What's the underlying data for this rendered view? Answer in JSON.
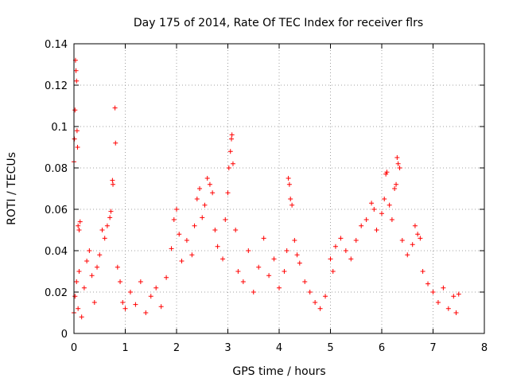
{
  "colors": {
    "series": "#ff0000",
    "grid": "#a0a0a0",
    "frame": "#000000",
    "background": "#ffffff"
  },
  "chart_data": {
    "type": "scatter",
    "title": "Day 175 of 2014, Rate Of TEC Index for receiver flrs",
    "xlabel": "GPS time / hours",
    "ylabel": "ROTI / TECUs",
    "xlim": [
      0,
      8
    ],
    "ylim": [
      0,
      0.14
    ],
    "xticks": [
      0,
      1,
      2,
      3,
      4,
      5,
      6,
      7,
      8
    ],
    "xtick_labels": [
      "0",
      "1",
      "2",
      "3",
      "4",
      "5",
      "6",
      "7",
      "8"
    ],
    "yticks": [
      0,
      0.02,
      0.04,
      0.06,
      0.08,
      0.1,
      0.12,
      0.14
    ],
    "ytick_labels": [
      "0",
      "0.02",
      "0.04",
      "0.06",
      "0.08",
      "0.1",
      "0.12",
      "0.14"
    ],
    "grid": true,
    "marker": "+",
    "series": [
      {
        "name": "ROTI",
        "points": [
          [
            0.0,
            0.083
          ],
          [
            0.01,
            0.094
          ],
          [
            0.02,
            0.108
          ],
          [
            0.03,
            0.132
          ],
          [
            0.04,
            0.127
          ],
          [
            0.05,
            0.122
          ],
          [
            0.06,
            0.098
          ],
          [
            0.07,
            0.09
          ],
          [
            0.08,
            0.052
          ],
          [
            0.1,
            0.05
          ],
          [
            0.12,
            0.054
          ],
          [
            0.0,
            0.01
          ],
          [
            0.02,
            0.018
          ],
          [
            0.05,
            0.025
          ],
          [
            0.08,
            0.012
          ],
          [
            0.1,
            0.03
          ],
          [
            0.15,
            0.008
          ],
          [
            0.2,
            0.022
          ],
          [
            0.25,
            0.035
          ],
          [
            0.3,
            0.04
          ],
          [
            0.35,
            0.028
          ],
          [
            0.4,
            0.015
          ],
          [
            0.45,
            0.032
          ],
          [
            0.5,
            0.038
          ],
          [
            0.55,
            0.05
          ],
          [
            0.6,
            0.046
          ],
          [
            0.65,
            0.052
          ],
          [
            0.7,
            0.056
          ],
          [
            0.72,
            0.059
          ],
          [
            0.75,
            0.074
          ],
          [
            0.76,
            0.072
          ],
          [
            0.8,
            0.109
          ],
          [
            0.81,
            0.092
          ],
          [
            0.85,
            0.032
          ],
          [
            0.9,
            0.025
          ],
          [
            0.95,
            0.015
          ],
          [
            1.0,
            0.012
          ],
          [
            1.1,
            0.02
          ],
          [
            1.2,
            0.014
          ],
          [
            1.3,
            0.025
          ],
          [
            1.4,
            0.01
          ],
          [
            1.5,
            0.018
          ],
          [
            1.6,
            0.022
          ],
          [
            1.7,
            0.013
          ],
          [
            1.8,
            0.027
          ],
          [
            1.9,
            0.041
          ],
          [
            1.95,
            0.055
          ],
          [
            2.0,
            0.06
          ],
          [
            2.05,
            0.048
          ],
          [
            2.1,
            0.035
          ],
          [
            2.2,
            0.045
          ],
          [
            2.3,
            0.038
          ],
          [
            2.35,
            0.052
          ],
          [
            2.4,
            0.065
          ],
          [
            2.45,
            0.07
          ],
          [
            2.5,
            0.056
          ],
          [
            2.55,
            0.062
          ],
          [
            2.6,
            0.075
          ],
          [
            2.65,
            0.072
          ],
          [
            2.7,
            0.068
          ],
          [
            2.75,
            0.05
          ],
          [
            2.8,
            0.042
          ],
          [
            2.9,
            0.036
          ],
          [
            2.95,
            0.055
          ],
          [
            3.0,
            0.068
          ],
          [
            3.02,
            0.08
          ],
          [
            3.05,
            0.088
          ],
          [
            3.07,
            0.094
          ],
          [
            3.08,
            0.096
          ],
          [
            3.1,
            0.082
          ],
          [
            3.15,
            0.05
          ],
          [
            3.2,
            0.03
          ],
          [
            3.3,
            0.025
          ],
          [
            3.4,
            0.04
          ],
          [
            3.5,
            0.02
          ],
          [
            3.6,
            0.032
          ],
          [
            3.7,
            0.046
          ],
          [
            3.8,
            0.028
          ],
          [
            3.9,
            0.036
          ],
          [
            4.0,
            0.022
          ],
          [
            4.1,
            0.03
          ],
          [
            4.15,
            0.04
          ],
          [
            4.18,
            0.075
          ],
          [
            4.2,
            0.072
          ],
          [
            4.22,
            0.065
          ],
          [
            4.25,
            0.062
          ],
          [
            4.3,
            0.045
          ],
          [
            4.35,
            0.038
          ],
          [
            4.4,
            0.034
          ],
          [
            4.5,
            0.025
          ],
          [
            4.6,
            0.02
          ],
          [
            4.7,
            0.015
          ],
          [
            4.8,
            0.012
          ],
          [
            4.9,
            0.018
          ],
          [
            5.0,
            0.036
          ],
          [
            5.05,
            0.03
          ],
          [
            5.1,
            0.042
          ],
          [
            5.2,
            0.046
          ],
          [
            5.3,
            0.04
          ],
          [
            5.4,
            0.036
          ],
          [
            5.5,
            0.045
          ],
          [
            5.6,
            0.052
          ],
          [
            5.7,
            0.055
          ],
          [
            5.8,
            0.063
          ],
          [
            5.85,
            0.06
          ],
          [
            5.9,
            0.05
          ],
          [
            6.0,
            0.058
          ],
          [
            6.05,
            0.065
          ],
          [
            6.08,
            0.077
          ],
          [
            6.1,
            0.078
          ],
          [
            6.15,
            0.062
          ],
          [
            6.2,
            0.055
          ],
          [
            6.25,
            0.07
          ],
          [
            6.28,
            0.072
          ],
          [
            6.3,
            0.085
          ],
          [
            6.32,
            0.082
          ],
          [
            6.35,
            0.08
          ],
          [
            6.4,
            0.045
          ],
          [
            6.5,
            0.038
          ],
          [
            6.6,
            0.043
          ],
          [
            6.65,
            0.052
          ],
          [
            6.7,
            0.048
          ],
          [
            6.75,
            0.046
          ],
          [
            6.8,
            0.03
          ],
          [
            6.9,
            0.024
          ],
          [
            7.0,
            0.02
          ],
          [
            7.1,
            0.015
          ],
          [
            7.2,
            0.022
          ],
          [
            7.3,
            0.012
          ],
          [
            7.4,
            0.018
          ],
          [
            7.45,
            0.01
          ],
          [
            7.5,
            0.019
          ]
        ]
      }
    ]
  }
}
